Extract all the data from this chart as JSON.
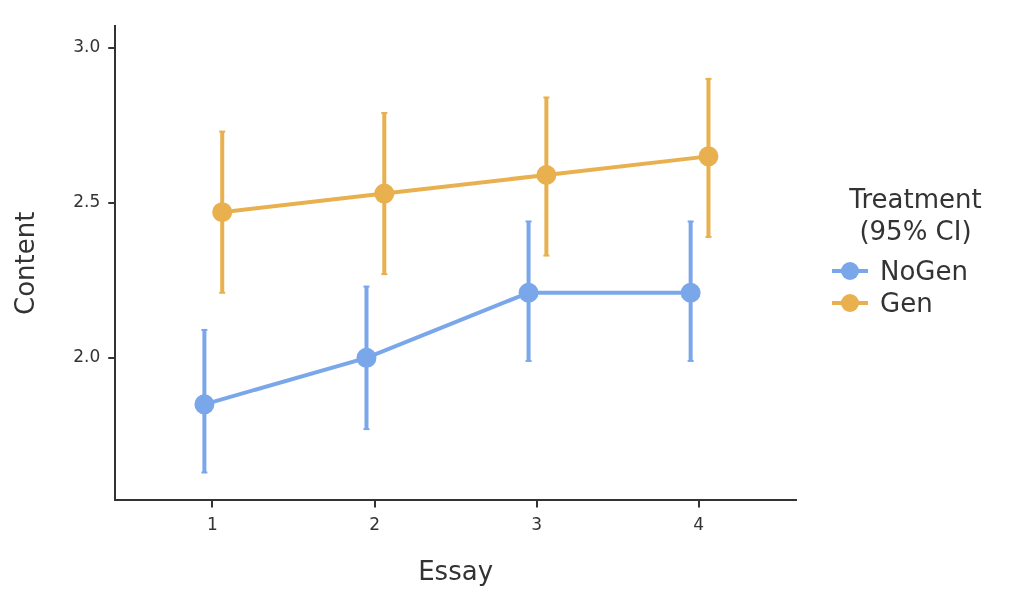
{
  "chart_data": {
    "type": "line",
    "xlabel": "Essay",
    "ylabel": "Content",
    "legend_title": "Treatment (95% CI)",
    "legend": "right",
    "xlim": [
      0.4,
      4.6
    ],
    "xticks": [
      1,
      2,
      3,
      4
    ],
    "ylim": [
      1.54,
      3.07
    ],
    "yticks": [
      {
        "value": 2,
        "label": "2.0"
      },
      2.5,
      {
        "value": 3,
        "label": "3.0"
      }
    ],
    "grid": false,
    "marker": "circle",
    "line_style": "solid",
    "series": [
      {
        "name": "NoGen",
        "color": "#7aa6ea",
        "x": [
          0.95,
          1.95,
          2.95,
          3.95
        ],
        "values": [
          1.85,
          2.0,
          2.21,
          2.21
        ],
        "errors": [
          [
            1.63,
            2.09
          ],
          [
            1.77,
            2.23
          ],
          [
            1.99,
            2.44
          ],
          [
            1.99,
            2.44
          ]
        ]
      },
      {
        "name": "Gen",
        "color": "#e8b04e",
        "x": [
          1.06,
          2.06,
          3.06,
          4.06
        ],
        "values": [
          2.47,
          2.53,
          2.59,
          2.65
        ],
        "errors": [
          [
            2.21,
            2.73
          ],
          [
            2.27,
            2.79
          ],
          [
            2.33,
            2.84
          ],
          [
            2.39,
            2.9
          ]
        ]
      }
    ]
  }
}
